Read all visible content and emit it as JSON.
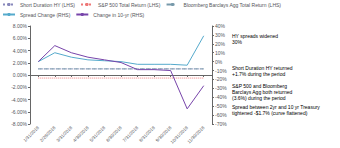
{
  "chart_data": {
    "type": "line",
    "categories": [
      "1/31/2018",
      "2/28/2018",
      "3/31/2018",
      "4/30/2018",
      "5/31/2018",
      "6/30/2018",
      "7/31/2018",
      "8/31/2018",
      "9/30/2018",
      "10/31/2018",
      "11/30/2018"
    ],
    "series": [
      {
        "name": "Short Duration HY (LHS)",
        "color": "#8888bb",
        "line_style": "dotted",
        "axis": "y",
        "values": [
          1.0,
          1.0,
          1.0,
          1.0,
          1.0,
          1.0,
          1.0,
          1.0,
          1.0,
          1.0,
          1.0
        ]
      },
      {
        "name": "S&P 500 Total Return (LHS)",
        "color": "#ee7777",
        "line_style": "dotted",
        "axis": "y",
        "values": [
          -0.5,
          -0.5,
          -0.5,
          -0.5,
          -0.5,
          -0.5,
          -0.5,
          -0.5,
          -0.5,
          -0.5,
          -0.5
        ]
      },
      {
        "name": "Bloomberg Barclays Agg Total Return (LHS)",
        "color": "#7799aa",
        "line_style": "dashed",
        "axis": "y",
        "values": [
          1.0,
          1.0,
          1.0,
          1.0,
          1.0,
          1.0,
          1.0,
          1.0,
          1.0,
          1.0,
          1.0
        ]
      },
      {
        "name": "Spread Change (RHS)",
        "color": "#55aacc",
        "line_style": "solid",
        "axis": "y2",
        "values": [
          0,
          10,
          5,
          2,
          1,
          0,
          -3,
          -3,
          -3,
          -4,
          29
        ]
      },
      {
        "name": "Change in 10-yr (RHS)",
        "color": "#7744aa",
        "line_style": "solid",
        "axis": "y2",
        "values": [
          0,
          18,
          10,
          5,
          2,
          -1,
          -9,
          -9,
          -10,
          -53,
          -27
        ]
      }
    ],
    "ylim": [
      -8.0,
      8.0
    ],
    "yticks": [
      {
        "value": -8.0,
        "label": "-8.00%"
      },
      {
        "value": -6.0,
        "label": "-6.00%"
      },
      {
        "value": -4.0,
        "label": "-4.00%"
      },
      {
        "value": -2.0,
        "label": "-2.00%"
      },
      {
        "value": 0.0,
        "label": "0.00%"
      },
      {
        "value": 2.0,
        "label": "2.00%"
      },
      {
        "value": 4.0,
        "label": "4.00%"
      },
      {
        "value": 6.0,
        "label": "6.00%"
      },
      {
        "value": 8.0,
        "label": "8.00%"
      }
    ],
    "y2lim": [
      -70,
      40
    ],
    "y2ticks": [
      {
        "value": -70,
        "label": "-70%"
      },
      {
        "value": -60,
        "label": "-60%"
      },
      {
        "value": -50,
        "label": "-50%"
      },
      {
        "value": -40,
        "label": "-40%"
      },
      {
        "value": -30,
        "label": "-30%"
      },
      {
        "value": -20,
        "label": "-20%"
      },
      {
        "value": -10,
        "label": "-10%"
      },
      {
        "value": 0,
        "label": "0%"
      },
      {
        "value": 10,
        "label": "10%"
      },
      {
        "value": 20,
        "label": "20%"
      },
      {
        "value": 30,
        "label": "30%"
      },
      {
        "value": 40,
        "label": "40%"
      }
    ],
    "annotations": [
      "HY spreads widened\n30%",
      "Short Duration HY returned\n+1.7% during the period",
      "S&P 500 and Bloomberg\nBarclays Agg both returned\n(3.6%) during the period",
      "Spread between 2yr and 10 yr Treasury\ntightened -$1.7% (curve flattened)"
    ],
    "legend": "top",
    "grid": false
  }
}
